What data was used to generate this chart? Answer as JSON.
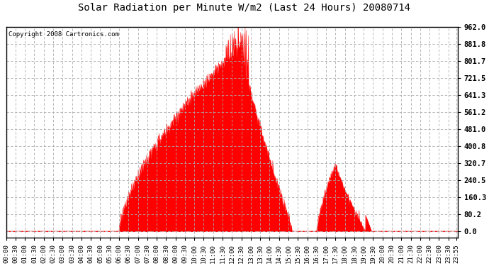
{
  "title": "Solar Radiation per Minute W/m2 (Last 24 Hours) 20080714",
  "copyright": "Copyright 2008 Cartronics.com",
  "yticks": [
    0.0,
    80.2,
    160.3,
    240.5,
    320.7,
    400.8,
    481.0,
    561.2,
    641.3,
    721.5,
    801.7,
    881.8,
    962.0
  ],
  "ymax": 962.0,
  "ymin": -30.0,
  "fill_color": "#FF0000",
  "line_color": "#FF0000",
  "dashed_line_color": "#FF0000",
  "bg_color": "#FFFFFF",
  "grid_color": "#AAAAAA",
  "title_fontsize": 10,
  "copyright_fontsize": 6.5,
  "tick_fontsize": 6.5,
  "ytick_fontsize": 7.5
}
